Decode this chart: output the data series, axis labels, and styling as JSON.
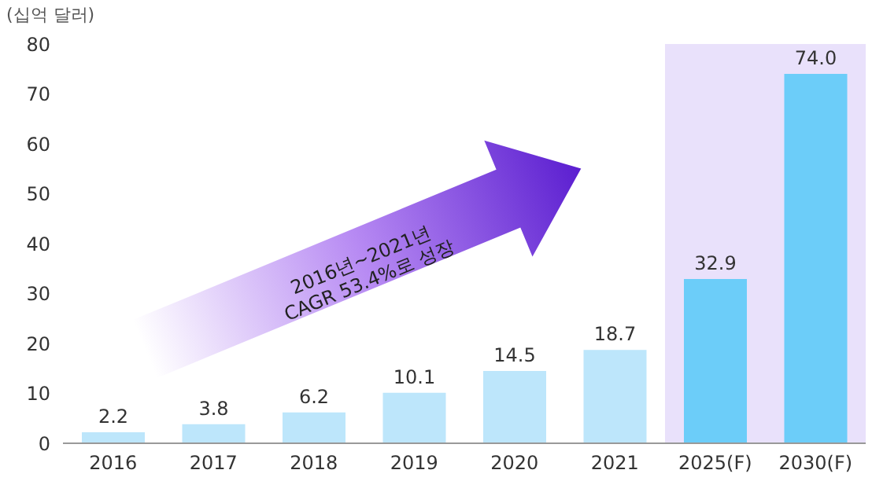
{
  "chart_data": {
    "type": "bar",
    "ylabel": "(십억 달러)",
    "categories": [
      "2016",
      "2017",
      "2018",
      "2019",
      "2020",
      "2021",
      "2025(F)",
      "2030(F)"
    ],
    "values": [
      2.2,
      3.8,
      6.2,
      10.1,
      14.5,
      18.7,
      32.9,
      74.0
    ],
    "colors": [
      "#bde6fb",
      "#bde6fb",
      "#bde6fb",
      "#bde6fb",
      "#bde6fb",
      "#bde6fb",
      "#6ccdf9",
      "#6ccdf9"
    ],
    "value_labels": [
      "2.2",
      "3.8",
      "6.2",
      "10.1",
      "14.5",
      "18.7",
      "32.9",
      "74.0"
    ],
    "ylim": [
      0,
      80
    ],
    "yticks": [
      0,
      10,
      20,
      30,
      40,
      50,
      60,
      70,
      80
    ],
    "grid": false,
    "bands": [
      {
        "axis": "x",
        "from": "2025(F)",
        "to": "2030(F)",
        "color": "#e9e1fb"
      }
    ],
    "annotations": [
      "2016년~2021년\nCAGR 53.4%로 성장"
    ]
  }
}
